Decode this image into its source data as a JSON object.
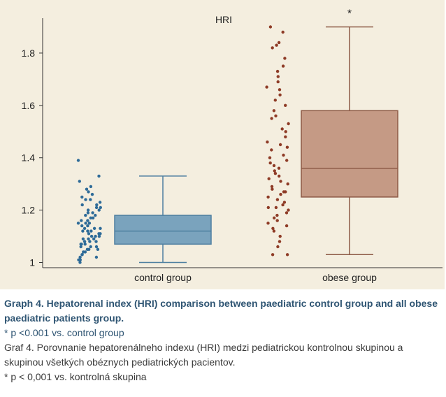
{
  "chart_data": {
    "type": "box",
    "title": "HRI",
    "xlabel": "",
    "ylabel": "",
    "categories": [
      "control group",
      "obese group"
    ],
    "ylim": [
      0.98,
      1.96
    ],
    "yticks": [
      1,
      1.2,
      1.4,
      1.6,
      1.8
    ],
    "ytick_labels": [
      "1",
      "1.2",
      "1.4",
      "1.6",
      "1.8"
    ],
    "boxes": [
      {
        "category": "control group",
        "min": 1.0,
        "q1": 1.07,
        "median": 1.12,
        "q3": 1.18,
        "max": 1.33,
        "color": "#7aa3bd",
        "edge": "#4e7fa0",
        "point_color": "#2e6b98"
      },
      {
        "category": "obese group",
        "min": 1.03,
        "q1": 1.25,
        "median": 1.36,
        "q3": 1.58,
        "max": 1.9,
        "color": "#c59a85",
        "edge": "#8d5a46",
        "point_color": "#8e3b26"
      }
    ],
    "points": [
      [
        1.39,
        1.33,
        1.31,
        1.29,
        1.28,
        1.27,
        1.26,
        1.25,
        1.24,
        1.24,
        1.23,
        1.22,
        1.22,
        1.21,
        1.21,
        1.2,
        1.2,
        1.19,
        1.19,
        1.18,
        1.18,
        1.17,
        1.17,
        1.16,
        1.16,
        1.15,
        1.15,
        1.15,
        1.14,
        1.14,
        1.13,
        1.13,
        1.13,
        1.12,
        1.12,
        1.12,
        1.11,
        1.11,
        1.11,
        1.1,
        1.1,
        1.1,
        1.09,
        1.09,
        1.09,
        1.08,
        1.08,
        1.08,
        1.07,
        1.07,
        1.07,
        1.06,
        1.06,
        1.06,
        1.05,
        1.05,
        1.05,
        1.04,
        1.04,
        1.03,
        1.03,
        1.02,
        1.02,
        1.01,
        1.01,
        1.0
      ],
      [
        1.9,
        1.88,
        1.84,
        1.83,
        1.82,
        1.78,
        1.75,
        1.73,
        1.71,
        1.69,
        1.67,
        1.66,
        1.64,
        1.62,
        1.6,
        1.58,
        1.56,
        1.55,
        1.53,
        1.51,
        1.5,
        1.48,
        1.46,
        1.45,
        1.44,
        1.43,
        1.41,
        1.4,
        1.39,
        1.38,
        1.37,
        1.36,
        1.35,
        1.34,
        1.33,
        1.32,
        1.31,
        1.3,
        1.29,
        1.28,
        1.27,
        1.27,
        1.26,
        1.25,
        1.24,
        1.23,
        1.22,
        1.21,
        1.21,
        1.2,
        1.19,
        1.18,
        1.17,
        1.16,
        1.15,
        1.14,
        1.13,
        1.12,
        1.1,
        1.08,
        1.06,
        1.03,
        1.03
      ]
    ],
    "annotations": [
      {
        "category": "obese group",
        "text": "*"
      }
    ]
  },
  "caption": {
    "en_title": "Graph 4. Hepatorenal index (HRI) comparison between paediatric control group and all obese paediatric patients group.",
    "en_note": "* p <0.001 vs. control group",
    "sk_title": "Graf 4. Porovnanie hepatorenálneho indexu (HRI) medzi pediatrickou kontrolnou skupinou a skupinou všetkých obéznych pediatrických pacientov.",
    "sk_note": "* p < 0,001 vs. kontrolná skupina"
  }
}
